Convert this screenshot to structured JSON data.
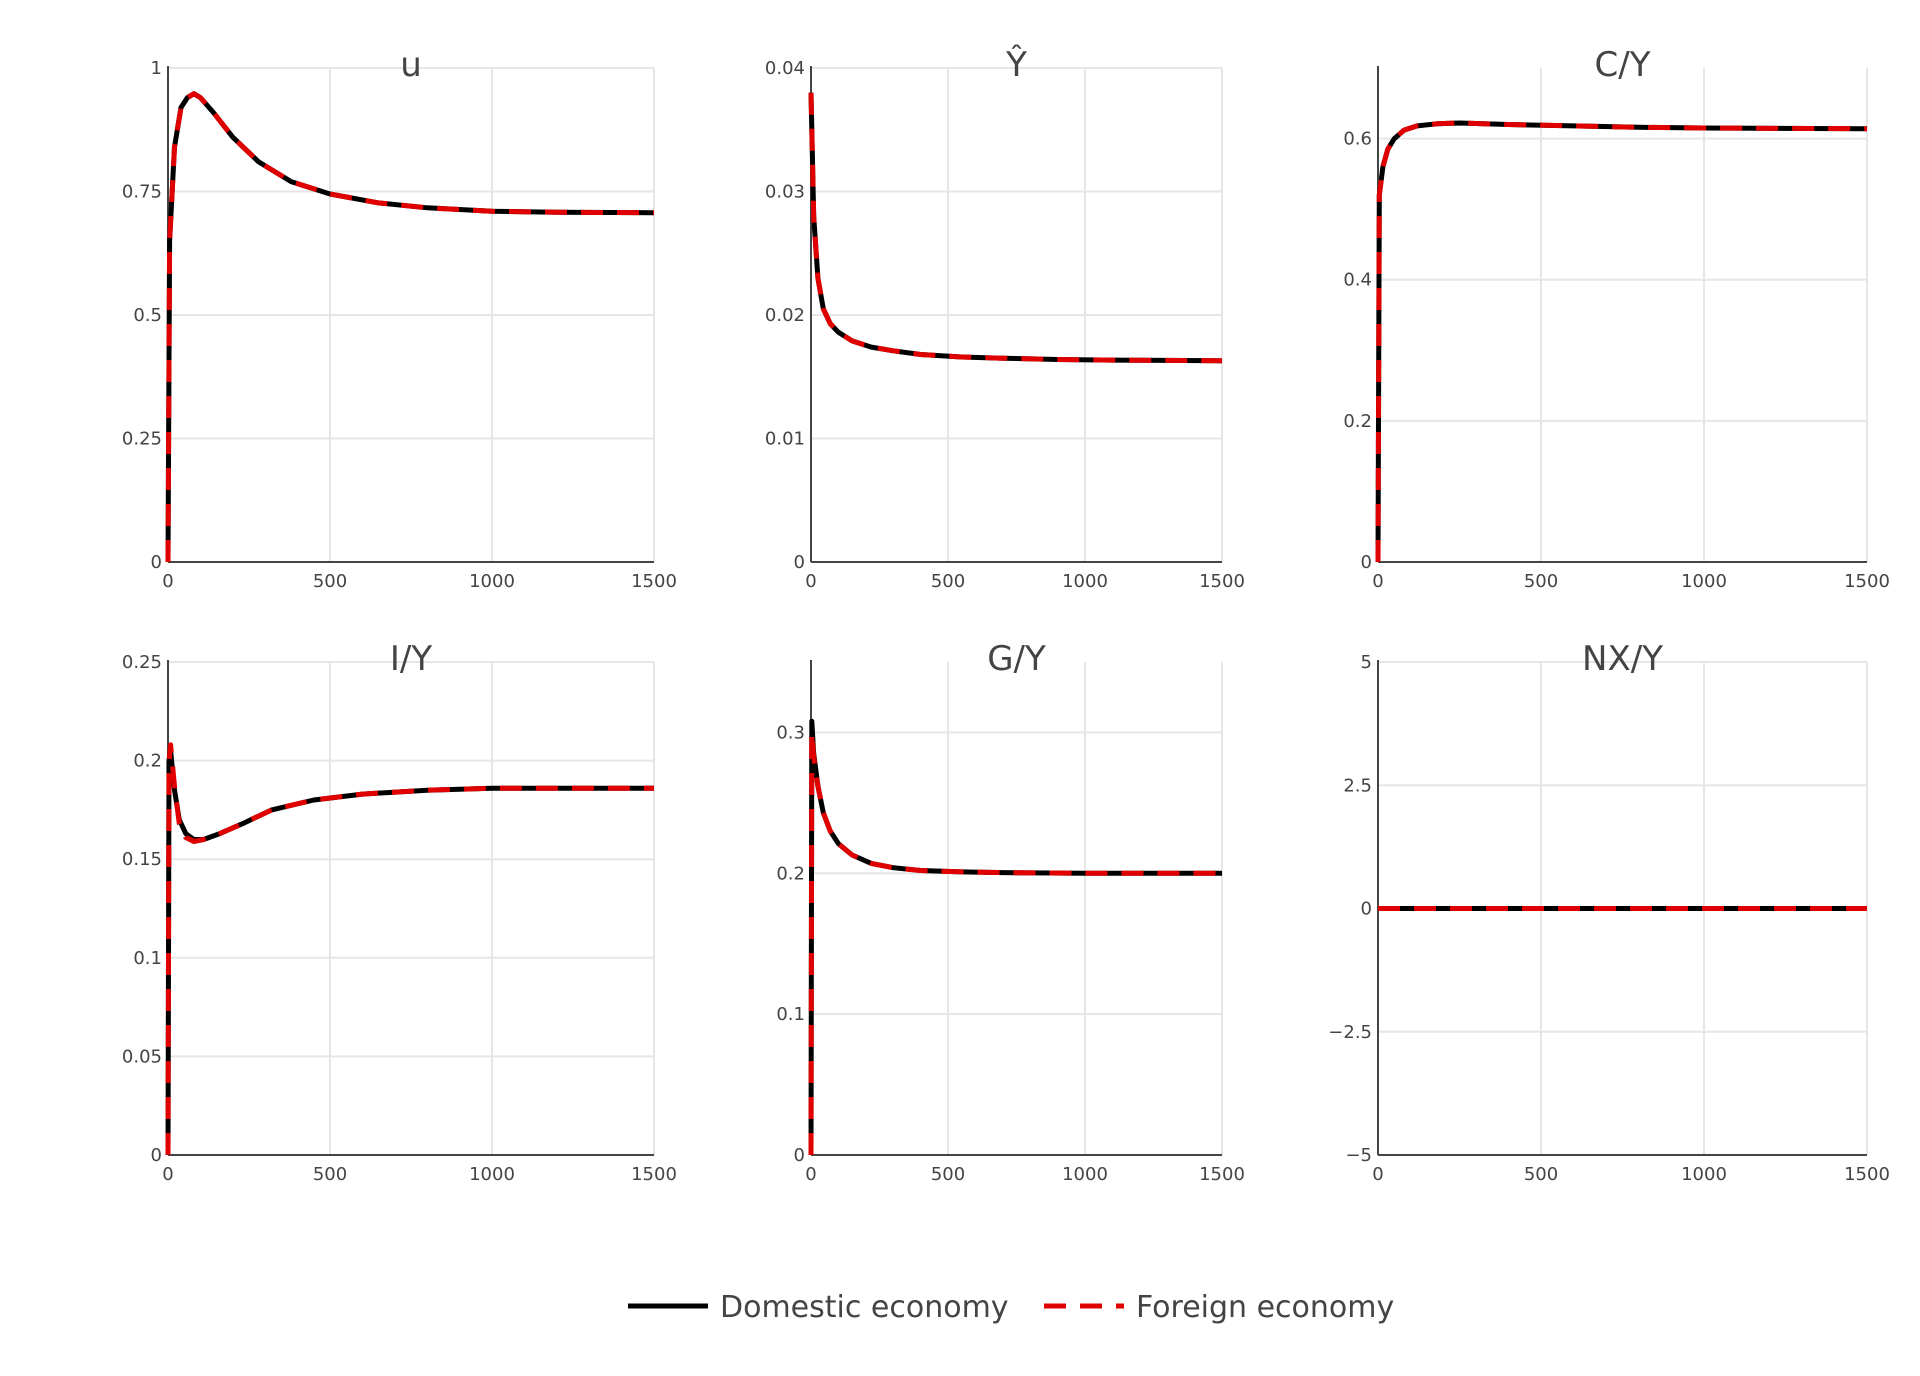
{
  "chart_data": [
    {
      "type": "line",
      "title": "u",
      "xlim": [
        0,
        1500
      ],
      "ylim": [
        0,
        1
      ],
      "xticks": [
        "0",
        "500",
        "1000",
        "1500"
      ],
      "yticks": [
        "0",
        "0.25",
        "0.5",
        "0.75",
        "1"
      ],
      "grid": true,
      "series": [
        {
          "name": "Domestic economy",
          "color": "#000000",
          "style": "solid",
          "points": [
            [
              0,
              0
            ],
            [
              5,
              0.65
            ],
            [
              20,
              0.84
            ],
            [
              40,
              0.92
            ],
            [
              60,
              0.94
            ],
            [
              80,
              0.948
            ],
            [
              100,
              0.94
            ],
            [
              140,
              0.91
            ],
            [
              200,
              0.86
            ],
            [
              280,
              0.81
            ],
            [
              380,
              0.77
            ],
            [
              500,
              0.745
            ],
            [
              650,
              0.727
            ],
            [
              800,
              0.717
            ],
            [
              1000,
              0.71
            ],
            [
              1200,
              0.708
            ],
            [
              1500,
              0.707
            ]
          ]
        },
        {
          "name": "Foreign economy",
          "color": "#e00000",
          "style": "dashed",
          "points": [
            [
              0,
              0
            ],
            [
              5,
              0.65
            ],
            [
              20,
              0.84
            ],
            [
              40,
              0.92
            ],
            [
              60,
              0.94
            ],
            [
              80,
              0.948
            ],
            [
              100,
              0.94
            ],
            [
              140,
              0.91
            ],
            [
              200,
              0.86
            ],
            [
              280,
              0.81
            ],
            [
              380,
              0.77
            ],
            [
              500,
              0.745
            ],
            [
              650,
              0.727
            ],
            [
              800,
              0.717
            ],
            [
              1000,
              0.71
            ],
            [
              1200,
              0.708
            ],
            [
              1500,
              0.707
            ]
          ]
        }
      ]
    },
    {
      "type": "line",
      "title": "Ŷ",
      "xlim": [
        0,
        1500
      ],
      "ylim": [
        0,
        0.04
      ],
      "xticks": [
        "0",
        "500",
        "1000",
        "1500"
      ],
      "yticks": [
        "0",
        "0.01",
        "0.02",
        "0.03",
        "0.04"
      ],
      "grid": true,
      "series": [
        {
          "name": "Domestic economy",
          "color": "#000000",
          "style": "solid",
          "points": [
            [
              0,
              0.038
            ],
            [
              10,
              0.028
            ],
            [
              25,
              0.023
            ],
            [
              45,
              0.0205
            ],
            [
              70,
              0.0193
            ],
            [
              100,
              0.0186
            ],
            [
              150,
              0.0179
            ],
            [
              220,
              0.0174
            ],
            [
              300,
              0.0171
            ],
            [
              400,
              0.0168
            ],
            [
              550,
              0.0166
            ],
            [
              700,
              0.0165
            ],
            [
              900,
              0.0164
            ],
            [
              1100,
              0.01635
            ],
            [
              1500,
              0.0163
            ]
          ]
        },
        {
          "name": "Foreign economy",
          "color": "#e00000",
          "style": "dashed",
          "points": [
            [
              0,
              0.038
            ],
            [
              10,
              0.028
            ],
            [
              25,
              0.023
            ],
            [
              45,
              0.0205
            ],
            [
              70,
              0.0193
            ],
            [
              100,
              0.0186
            ],
            [
              150,
              0.0179
            ],
            [
              220,
              0.0174
            ],
            [
              300,
              0.0171
            ],
            [
              400,
              0.0168
            ],
            [
              550,
              0.0166
            ],
            [
              700,
              0.0165
            ],
            [
              900,
              0.0164
            ],
            [
              1100,
              0.01635
            ],
            [
              1500,
              0.0163
            ]
          ]
        }
      ]
    },
    {
      "type": "line",
      "title": "C/Y",
      "xlim": [
        0,
        1500
      ],
      "ylim": [
        0,
        0.7
      ],
      "xticks": [
        "0",
        "500",
        "1000",
        "1500"
      ],
      "yticks": [
        "0",
        "0.2",
        "0.4",
        "0.6"
      ],
      "grid": true,
      "series": [
        {
          "name": "Domestic economy",
          "color": "#000000",
          "style": "solid",
          "points": [
            [
              0,
              0
            ],
            [
              4,
              0.52
            ],
            [
              15,
              0.56
            ],
            [
              30,
              0.585
            ],
            [
              50,
              0.6
            ],
            [
              80,
              0.612
            ],
            [
              120,
              0.618
            ],
            [
              180,
              0.621
            ],
            [
              250,
              0.622
            ],
            [
              400,
              0.62
            ],
            [
              600,
              0.618
            ],
            [
              800,
              0.616
            ],
            [
              1000,
              0.615
            ],
            [
              1500,
              0.614
            ]
          ]
        },
        {
          "name": "Foreign economy",
          "color": "#e00000",
          "style": "dashed",
          "points": [
            [
              0,
              0
            ],
            [
              4,
              0.52
            ],
            [
              15,
              0.56
            ],
            [
              30,
              0.585
            ],
            [
              50,
              0.6
            ],
            [
              80,
              0.612
            ],
            [
              120,
              0.618
            ],
            [
              180,
              0.621
            ],
            [
              250,
              0.622
            ],
            [
              400,
              0.62
            ],
            [
              600,
              0.618
            ],
            [
              800,
              0.616
            ],
            [
              1000,
              0.615
            ],
            [
              1500,
              0.614
            ]
          ]
        }
      ]
    },
    {
      "type": "line",
      "title": "I/Y",
      "xlim": [
        0,
        1500
      ],
      "ylim": [
        0,
        0.25
      ],
      "xticks": [
        "0",
        "500",
        "1000",
        "1500"
      ],
      "yticks": [
        "0",
        "0.05",
        "0.1",
        "0.15",
        "0.2",
        "0.25"
      ],
      "grid": true,
      "series": [
        {
          "name": "Domestic economy",
          "color": "#000000",
          "style": "solid",
          "points": [
            [
              0,
              0
            ],
            [
              3,
              0.2
            ],
            [
              8,
              0.205
            ],
            [
              20,
              0.185
            ],
            [
              35,
              0.17
            ],
            [
              55,
              0.163
            ],
            [
              80,
              0.16
            ],
            [
              110,
              0.16
            ],
            [
              160,
              0.163
            ],
            [
              230,
              0.168
            ],
            [
              320,
              0.175
            ],
            [
              450,
              0.18
            ],
            [
              600,
              0.183
            ],
            [
              800,
              0.185
            ],
            [
              1000,
              0.186
            ],
            [
              1500,
              0.186
            ]
          ]
        },
        {
          "name": "Foreign economy",
          "color": "#e00000",
          "style": "dashed",
          "points": [
            [
              0,
              0
            ],
            [
              3,
              0.2
            ],
            [
              8,
              0.208
            ],
            [
              20,
              0.187
            ],
            [
              35,
              0.168
            ],
            [
              55,
              0.161
            ],
            [
              80,
              0.159
            ],
            [
              110,
              0.16
            ],
            [
              160,
              0.163
            ],
            [
              230,
              0.168
            ],
            [
              320,
              0.175
            ],
            [
              450,
              0.18
            ],
            [
              600,
              0.183
            ],
            [
              800,
              0.185
            ],
            [
              1000,
              0.186
            ],
            [
              1500,
              0.186
            ]
          ]
        }
      ]
    },
    {
      "type": "line",
      "title": "G/Y",
      "xlim": [
        0,
        1500
      ],
      "ylim": [
        0,
        0.35
      ],
      "xticks": [
        "0",
        "500",
        "1000",
        "1500"
      ],
      "yticks": [
        "0",
        "0.1",
        "0.2",
        "0.3"
      ],
      "grid": true,
      "series": [
        {
          "name": "Domestic economy",
          "color": "#000000",
          "style": "solid",
          "points": [
            [
              0,
              0
            ],
            [
              3,
              0.308
            ],
            [
              10,
              0.285
            ],
            [
              25,
              0.262
            ],
            [
              45,
              0.243
            ],
            [
              70,
              0.23
            ],
            [
              100,
              0.221
            ],
            [
              150,
              0.213
            ],
            [
              220,
              0.207
            ],
            [
              300,
              0.204
            ],
            [
              400,
              0.202
            ],
            [
              550,
              0.201
            ],
            [
              700,
              0.2005
            ],
            [
              1000,
              0.2
            ],
            [
              1500,
              0.2
            ]
          ]
        },
        {
          "name": "Foreign economy",
          "color": "#e00000",
          "style": "dashed",
          "points": [
            [
              0,
              0
            ],
            [
              3,
              0.3
            ],
            [
              10,
              0.283
            ],
            [
              25,
              0.262
            ],
            [
              45,
              0.243
            ],
            [
              70,
              0.23
            ],
            [
              100,
              0.221
            ],
            [
              150,
              0.213
            ],
            [
              220,
              0.207
            ],
            [
              300,
              0.204
            ],
            [
              400,
              0.202
            ],
            [
              550,
              0.201
            ],
            [
              700,
              0.2005
            ],
            [
              1000,
              0.2
            ],
            [
              1500,
              0.2
            ]
          ]
        }
      ]
    },
    {
      "type": "line",
      "title": "NX/Y",
      "xlim": [
        0,
        1500
      ],
      "ylim": [
        -5,
        5
      ],
      "xticks": [
        "0",
        "500",
        "1000",
        "1500"
      ],
      "yticks": [
        "−5",
        "−2.5",
        "0",
        "2.5",
        "5"
      ],
      "grid": true,
      "series": [
        {
          "name": "Domestic economy",
          "color": "#000000",
          "style": "solid",
          "points": [
            [
              0,
              0
            ],
            [
              1500,
              0
            ]
          ]
        },
        {
          "name": "Foreign economy",
          "color": "#e00000",
          "style": "dashed",
          "points": [
            [
              0,
              0
            ],
            [
              1500,
              0
            ]
          ]
        }
      ]
    }
  ],
  "legend": {
    "placement": "bottom-center",
    "items": [
      {
        "label": "Domestic economy",
        "color": "#000000",
        "style": "solid"
      },
      {
        "label": "Foreign economy",
        "color": "#e00000",
        "style": "dashed"
      }
    ]
  }
}
